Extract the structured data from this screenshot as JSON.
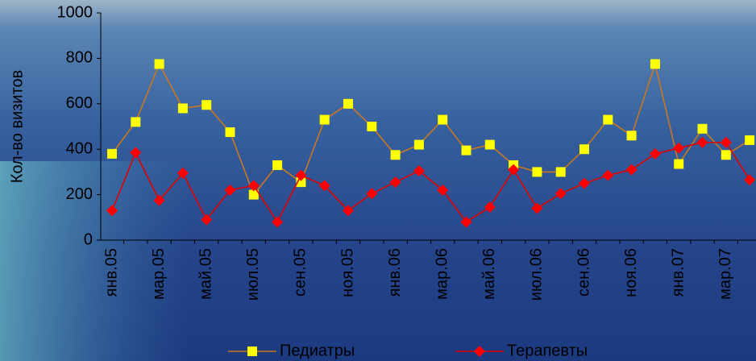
{
  "chart_data": {
    "type": "line",
    "y_label": "Кол-во визитов",
    "categories": [
      "янв.05",
      null,
      "мар.05",
      null,
      "май.05",
      null,
      "июл.05",
      null,
      "сен.05",
      null,
      "ноя.05",
      null,
      "янв.06",
      null,
      "мар.06",
      null,
      "май.06",
      null,
      "июл.06",
      null,
      "сен.06",
      null,
      "ноя.06",
      null,
      "янв.07",
      null,
      "мар.07",
      null
    ],
    "series": [
      {
        "name": "Педиатры",
        "color": "#c87820",
        "marker_color": "#ffff00",
        "values": [
          380,
          520,
          775,
          580,
          595,
          475,
          200,
          330,
          255,
          530,
          600,
          500,
          375,
          420,
          530,
          395,
          420,
          330,
          300,
          300,
          400,
          530,
          460,
          775,
          335,
          490,
          375,
          440
        ]
      },
      {
        "name": "Терапевты",
        "color": "#e00000",
        "marker_color": "#ff0000",
        "values": [
          130,
          385,
          175,
          295,
          90,
          220,
          240,
          80,
          285,
          240,
          130,
          205,
          255,
          305,
          220,
          80,
          145,
          310,
          140,
          205,
          250,
          285,
          310,
          380,
          405,
          430,
          430,
          265
        ]
      }
    ],
    "ylim": [
      0,
      1000
    ],
    "yticks": [
      0,
      200,
      400,
      600,
      800,
      1000
    ]
  }
}
